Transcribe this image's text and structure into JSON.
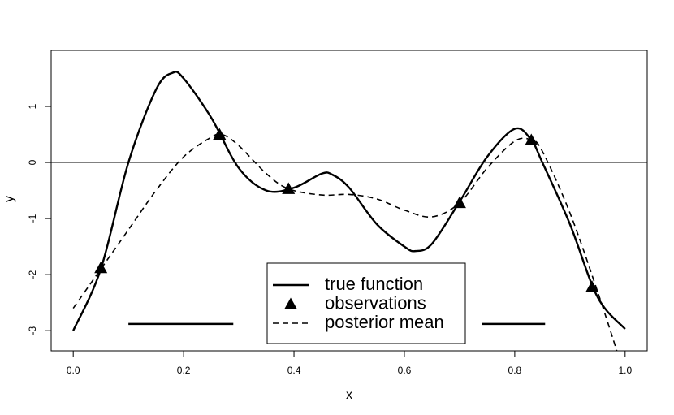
{
  "chart_data": {
    "type": "line",
    "xlabel": "x",
    "ylabel": "y",
    "xlim": [
      -0.04,
      1.04
    ],
    "ylim": [
      -3.36,
      2.0
    ],
    "xticks": [
      {
        "value": 0,
        "label": "0.0"
      },
      0.2,
      0.4,
      0.6,
      0.8,
      {
        "value": 1,
        "label": "1.0"
      }
    ],
    "yticks": [
      -3,
      -2,
      -1,
      0,
      1
    ],
    "hline": 0,
    "series": [
      {
        "name": "true function",
        "color": "#000000",
        "style": "solid",
        "x": [
          0,
          0.05,
          0.1,
          0.15,
          0.18,
          0.2,
          0.25,
          0.3,
          0.35,
          0.4,
          0.45,
          0.47,
          0.5,
          0.55,
          0.6,
          0.62,
          0.65,
          0.7,
          0.75,
          0.8,
          0.83,
          0.85,
          0.9,
          0.95,
          1.0
        ],
        "values": [
          -3.0,
          -1.9,
          0.0,
          1.3,
          1.6,
          1.5,
          0.8,
          -0.1,
          -0.5,
          -0.45,
          -0.2,
          -0.22,
          -0.45,
          -1.1,
          -1.5,
          -1.58,
          -1.45,
          -0.7,
          0.1,
          0.6,
          0.4,
          0.0,
          -1.1,
          -2.4,
          -2.97
        ]
      },
      {
        "name": "observations",
        "color": "#000000",
        "marker": "triangle",
        "x": [
          0.05,
          0.265,
          0.39,
          0.7,
          0.83,
          0.94
        ],
        "values": [
          -1.88,
          0.5,
          -0.47,
          -0.72,
          0.4,
          -2.22
        ]
      },
      {
        "name": "posterior mean",
        "color": "#000000",
        "style": "dashed",
        "x": [
          0,
          0.05,
          0.1,
          0.15,
          0.2,
          0.25,
          0.27,
          0.3,
          0.35,
          0.39,
          0.45,
          0.5,
          0.55,
          0.6,
          0.65,
          0.7,
          0.75,
          0.8,
          0.83,
          0.85,
          0.9,
          0.95,
          0.985
        ],
        "values": [
          -2.6,
          -1.9,
          -1.2,
          -0.5,
          0.1,
          0.45,
          0.5,
          0.3,
          -0.2,
          -0.47,
          -0.58,
          -0.57,
          -0.65,
          -0.85,
          -0.97,
          -0.72,
          -0.1,
          0.38,
          0.4,
          0.2,
          -0.9,
          -2.3,
          -3.36
        ]
      },
      {
        "color": "#000000",
        "style": "solid",
        "x": [
          0.1,
          0.29
        ],
        "values": [
          -2.88,
          -2.88
        ]
      },
      {
        "color": "#000000",
        "style": "solid",
        "x": [
          0.74,
          0.855
        ],
        "values": [
          -2.88,
          -2.88
        ]
      }
    ]
  }
}
